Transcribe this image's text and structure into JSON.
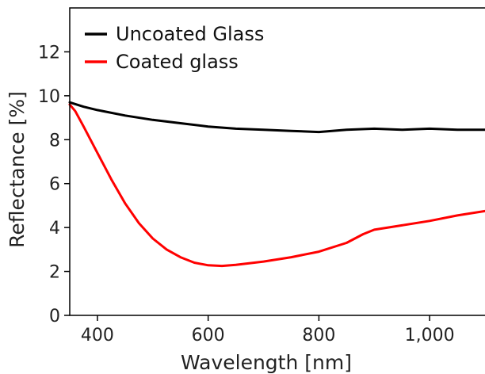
{
  "chart_data": {
    "type": "line",
    "title": "",
    "xlabel": "Wavelength [nm]",
    "ylabel": "Reflectance [%]",
    "xlim": [
      350,
      1100
    ],
    "ylim": [
      0,
      14
    ],
    "x_ticks": [
      400,
      600,
      800,
      1000
    ],
    "x_tick_labels": [
      "400",
      "600",
      "800",
      "1,000"
    ],
    "y_ticks": [
      0,
      2,
      4,
      6,
      8,
      10,
      12
    ],
    "y_tick_labels": [
      "0",
      "2",
      "4",
      "6",
      "8",
      "10",
      "12"
    ],
    "grid": false,
    "legend_position": "top-left",
    "series": [
      {
        "name": "Uncoated Glass",
        "color": "#000000",
        "x": [
          350,
          375,
          400,
          450,
          500,
          550,
          600,
          650,
          700,
          750,
          800,
          850,
          900,
          950,
          1000,
          1050,
          1100
        ],
        "y": [
          9.7,
          9.5,
          9.35,
          9.1,
          8.9,
          8.75,
          8.6,
          8.5,
          8.45,
          8.4,
          8.35,
          8.45,
          8.5,
          8.45,
          8.5,
          8.45,
          8.45
        ]
      },
      {
        "name": "Coated glass",
        "color": "#ff0000",
        "x": [
          350,
          360,
          375,
          400,
          425,
          450,
          475,
          500,
          525,
          550,
          575,
          600,
          625,
          650,
          700,
          750,
          800,
          850,
          880,
          900,
          950,
          1000,
          1050,
          1100
        ],
        "y": [
          9.6,
          9.3,
          8.6,
          7.4,
          6.2,
          5.1,
          4.2,
          3.5,
          3.0,
          2.65,
          2.4,
          2.28,
          2.25,
          2.3,
          2.45,
          2.65,
          2.9,
          3.3,
          3.7,
          3.9,
          4.1,
          4.3,
          4.55,
          4.75
        ]
      }
    ]
  }
}
